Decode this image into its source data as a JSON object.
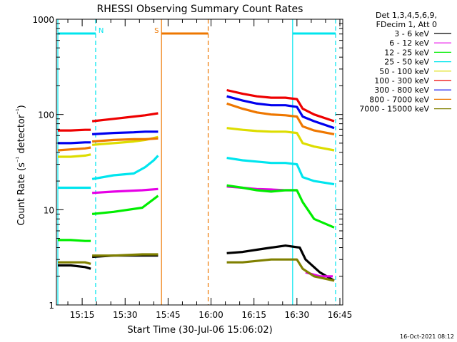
{
  "chart_data": {
    "type": "line",
    "title": "RHESSI Observing Summary Count Rates",
    "xlabel": "Start Time (30-Jul-06 15:06:02)",
    "ylabel": "Count Rate (s⁻¹ detector⁻¹)",
    "y_scale": "log",
    "ylim": [
      1,
      1000
    ],
    "xlim_minutes": [
      0,
      100
    ],
    "x_ticks": [
      {
        "label": "15:15",
        "t": 9
      },
      {
        "label": "15:30",
        "t": 24
      },
      {
        "label": "15:45",
        "t": 39
      },
      {
        "label": "16:00",
        "t": 54
      },
      {
        "label": "16:15",
        "t": 69
      },
      {
        "label": "16:30",
        "t": 84
      },
      {
        "label": "16:45",
        "t": 99
      }
    ],
    "y_ticks": [
      {
        "label": "1",
        "v": 1
      },
      {
        "label": "10",
        "v": 10
      },
      {
        "label": "100",
        "v": 100
      },
      {
        "label": "1000",
        "v": 1000
      }
    ],
    "legend_header": [
      "Det 1,3,4,5,6,9,",
      "FDecim 1, Att 0"
    ],
    "legend_position": "right",
    "footer": "16-Oct-2021 08:12",
    "markers": [
      {
        "label": "N",
        "color": "#00e5ee",
        "start": 0.5,
        "end": 13.7
      },
      {
        "label": "S",
        "color": "#ee7700",
        "start": 36.7,
        "end": 53.0
      },
      {
        "label": "",
        "color": "#00e5ee",
        "start": 82.5,
        "end": 97.5
      }
    ],
    "series": [
      {
        "name": "3 - 6 keV",
        "color": "#000000",
        "segments": [
          [
            [
              0.5,
              2.6
            ],
            [
              5,
              2.6
            ],
            [
              10,
              2.5
            ],
            [
              12,
              2.4
            ]
          ],
          [
            [
              12.5,
              3.2
            ],
            [
              20,
              3.3
            ],
            [
              30,
              3.3
            ],
            [
              35.5,
              3.3
            ]
          ],
          [
            [
              59.5,
              3.5
            ],
            [
              65,
              3.6
            ],
            [
              70,
              3.8
            ],
            [
              75,
              4.0
            ],
            [
              80,
              4.2
            ],
            [
              85,
              4.0
            ],
            [
              87,
              3.0
            ],
            [
              92,
              2.2
            ],
            [
              97,
              1.8
            ]
          ]
        ]
      },
      {
        "name": "6 - 12 keV",
        "color": "#e600e6",
        "segments": [
          [
            [
              12.5,
              15.0
            ],
            [
              20,
              15.5
            ],
            [
              30,
              16.0
            ],
            [
              35.5,
              16.5
            ]
          ],
          [
            [
              59.5,
              17.5
            ],
            [
              65,
              17.0
            ],
            [
              70,
              16.5
            ],
            [
              75,
              16.3
            ],
            [
              80,
              16.0
            ],
            [
              84,
              16.0
            ]
          ],
          [
            [
              87,
              2.2
            ],
            [
              92,
              2.0
            ],
            [
              96.5,
              2.0
            ]
          ]
        ]
      },
      {
        "name": "12 - 25 keV",
        "color": "#00ee00",
        "segments": [
          [
            [
              0.5,
              4.8
            ],
            [
              5,
              4.8
            ],
            [
              10,
              4.7
            ],
            [
              12,
              4.7
            ]
          ],
          [
            [
              12.5,
              9.0
            ],
            [
              20,
              9.5
            ],
            [
              30,
              10.5
            ],
            [
              35.5,
              14.0
            ]
          ],
          [
            [
              59.5,
              18.0
            ],
            [
              65,
              17.0
            ],
            [
              70,
              16.0
            ],
            [
              75,
              15.5
            ],
            [
              80,
              16.0
            ],
            [
              84,
              16.0
            ],
            [
              86,
              12.0
            ],
            [
              90,
              8.0
            ],
            [
              97,
              6.5
            ]
          ]
        ]
      },
      {
        "name": "25 - 50 keV",
        "color": "#00e5ee",
        "segments": [
          [
            [
              0.5,
              17.0
            ],
            [
              5,
              17.0
            ],
            [
              10,
              17.0
            ],
            [
              12,
              17.0
            ]
          ],
          [
            [
              12.5,
              21.0
            ],
            [
              20,
              23.0
            ],
            [
              27,
              24.0
            ],
            [
              31,
              28.0
            ],
            [
              34,
              33.0
            ],
            [
              35.5,
              37.0
            ]
          ],
          [
            [
              59.5,
              35.0
            ],
            [
              65,
              33.0
            ],
            [
              70,
              32.0
            ],
            [
              75,
              31.0
            ],
            [
              80,
              31.0
            ],
            [
              84,
              30.0
            ],
            [
              86,
              22.0
            ],
            [
              90,
              20.0
            ],
            [
              97,
              18.5
            ]
          ]
        ]
      },
      {
        "name": "50 - 100 keV",
        "color": "#dddd00",
        "segments": [
          [
            [
              0.5,
              36.0
            ],
            [
              5,
              36.0
            ],
            [
              10,
              37.0
            ],
            [
              12,
              38.0
            ]
          ],
          [
            [
              12.5,
              48.0
            ],
            [
              20,
              50.0
            ],
            [
              27,
              52.0
            ],
            [
              31,
              54.0
            ],
            [
              35.5,
              58.0
            ]
          ],
          [
            [
              59.5,
              72.0
            ],
            [
              65,
              69.0
            ],
            [
              70,
              67.0
            ],
            [
              75,
              66.0
            ],
            [
              80,
              66.0
            ],
            [
              84,
              64.0
            ],
            [
              86,
              50.0
            ],
            [
              90,
              46.0
            ],
            [
              97,
              42.0
            ]
          ]
        ]
      },
      {
        "name": "100 - 300 keV",
        "color": "#ee0000",
        "segments": [
          [
            [
              0.5,
              68.0
            ],
            [
              5,
              68.0
            ],
            [
              10,
              69.0
            ],
            [
              12,
              69.0
            ]
          ],
          [
            [
              12.5,
              85.0
            ],
            [
              20,
              90.0
            ],
            [
              27,
              95.0
            ],
            [
              31,
              98.0
            ],
            [
              35.5,
              103.0
            ]
          ],
          [
            [
              59.5,
              180.0
            ],
            [
              65,
              165.0
            ],
            [
              70,
              155.0
            ],
            [
              75,
              150.0
            ],
            [
              80,
              150.0
            ],
            [
              84,
              145.0
            ],
            [
              86,
              115.0
            ],
            [
              90,
              100.0
            ],
            [
              97,
              85.0
            ]
          ]
        ]
      },
      {
        "name": "300 - 800 keV",
        "color": "#0000ee",
        "segments": [
          [
            [
              0.5,
              50.0
            ],
            [
              5,
              50.0
            ],
            [
              10,
              51.0
            ],
            [
              12,
              51.0
            ]
          ],
          [
            [
              12.5,
              62.0
            ],
            [
              20,
              64.0
            ],
            [
              27,
              65.0
            ],
            [
              31,
              66.0
            ],
            [
              35.5,
              66.0
            ]
          ],
          [
            [
              59.5,
              155.0
            ],
            [
              65,
              140.0
            ],
            [
              70,
              130.0
            ],
            [
              75,
              125.0
            ],
            [
              80,
              125.0
            ],
            [
              84,
              120.0
            ],
            [
              86,
              95.0
            ],
            [
              90,
              85.0
            ],
            [
              97,
              72.0
            ]
          ]
        ]
      },
      {
        "name": "800 - 7000 keV",
        "color": "#ee7700",
        "segments": [
          [
            [
              0.5,
              42.0
            ],
            [
              5,
              43.0
            ],
            [
              10,
              44.0
            ],
            [
              12,
              45.0
            ]
          ],
          [
            [
              12.5,
              52.0
            ],
            [
              20,
              54.0
            ],
            [
              27,
              55.0
            ],
            [
              31,
              55.0
            ],
            [
              35.5,
              56.0
            ]
          ],
          [
            [
              59.5,
              130.0
            ],
            [
              65,
              115.0
            ],
            [
              70,
              105.0
            ],
            [
              75,
              100.0
            ],
            [
              80,
              98.0
            ],
            [
              84,
              95.0
            ],
            [
              86,
              75.0
            ],
            [
              90,
              68.0
            ],
            [
              97,
              62.0
            ]
          ]
        ]
      },
      {
        "name": "7000 - 15000 keV",
        "color": "#808000",
        "segments": [
          [
            [
              0.5,
              2.8
            ],
            [
              5,
              2.8
            ],
            [
              10,
              2.8
            ],
            [
              12,
              2.7
            ]
          ],
          [
            [
              12.5,
              3.3
            ],
            [
              20,
              3.3
            ],
            [
              30,
              3.4
            ],
            [
              35.5,
              3.4
            ]
          ],
          [
            [
              59.5,
              2.8
            ],
            [
              65,
              2.8
            ],
            [
              70,
              2.9
            ],
            [
              75,
              3.0
            ],
            [
              80,
              3.0
            ],
            [
              84,
              3.0
            ],
            [
              86,
              2.4
            ],
            [
              90,
              2.0
            ],
            [
              97,
              1.8
            ]
          ]
        ]
      }
    ]
  }
}
